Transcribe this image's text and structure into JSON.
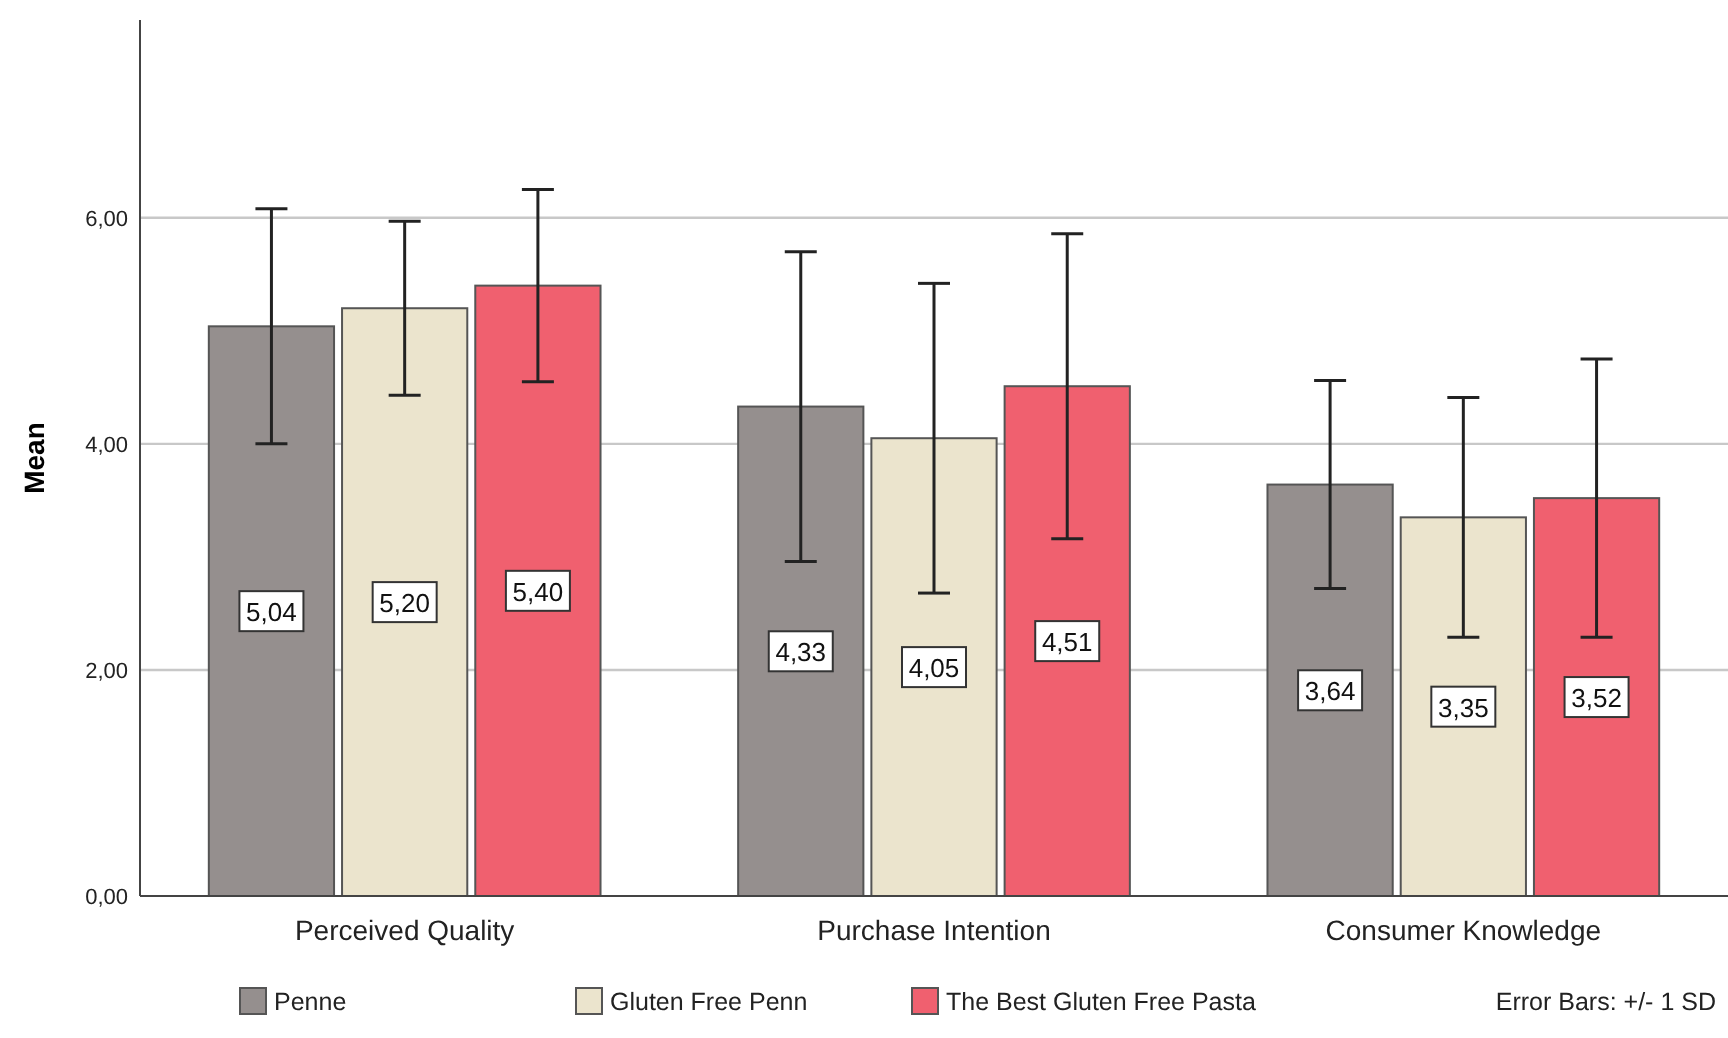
{
  "chart_data": {
    "type": "bar",
    "ylabel": "Mean",
    "categories": [
      "Perceived Quality",
      "Purchase Intention",
      "Consumer Knowledge"
    ],
    "series": [
      {
        "name": "Penne",
        "color": "#958f8e",
        "values": [
          5.04,
          4.33,
          3.64
        ],
        "errors": [
          1.04,
          1.37,
          0.92
        ],
        "value_labels": [
          "5,04",
          "4,33",
          "3,64"
        ]
      },
      {
        "name": "Gluten Free Penn",
        "color": "#ebe4cd",
        "values": [
          5.2,
          4.05,
          3.35
        ],
        "errors": [
          0.77,
          1.37,
          1.06
        ],
        "value_labels": [
          "5,20",
          "4,05",
          "3,35"
        ]
      },
      {
        "name": "The Best Gluten Free Pasta",
        "color": "#f0606f",
        "values": [
          5.4,
          4.51,
          3.52
        ],
        "errors": [
          0.85,
          1.35,
          1.23
        ],
        "value_labels": [
          "5,40",
          "4,51",
          "3,52"
        ]
      }
    ],
    "ylim": [
      0,
      7.75
    ],
    "yticks": [
      {
        "value": 0,
        "label": "0,00"
      },
      {
        "value": 2,
        "label": "2,00"
      },
      {
        "value": 4,
        "label": "4,00"
      },
      {
        "value": 6,
        "label": "6,00"
      }
    ],
    "grid": "y",
    "legend": "bottom",
    "annotations": [
      "Error Bars: +/- 1 SD"
    ]
  }
}
